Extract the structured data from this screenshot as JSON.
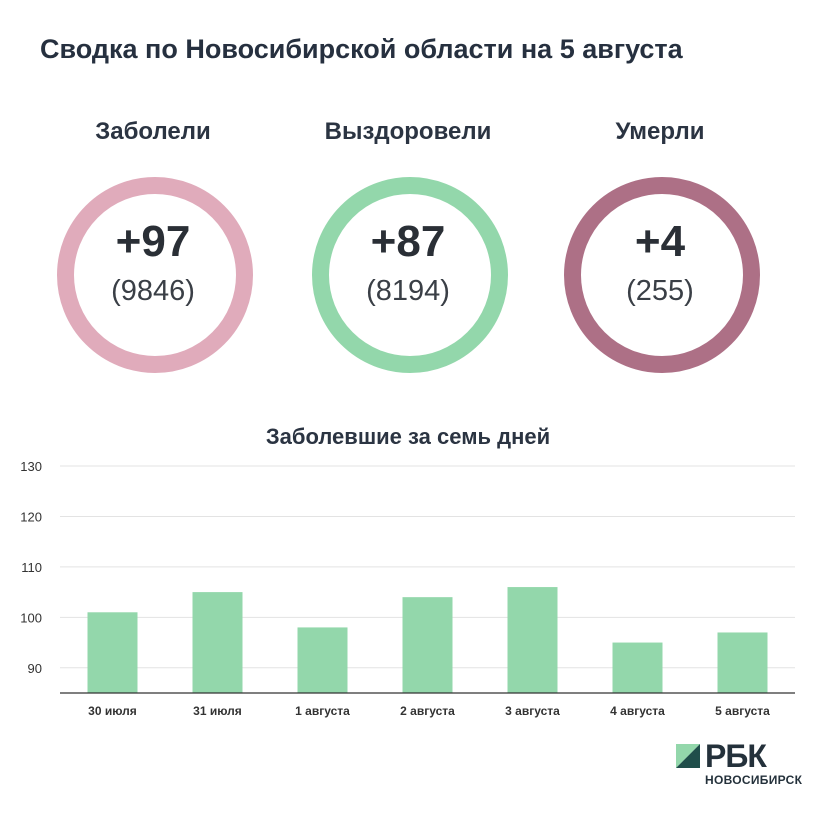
{
  "title": "Сводка по Новосибирской области на 5 августа",
  "stats": [
    {
      "label": "Заболели",
      "delta": "+97",
      "total": "(9846)",
      "color": "#e0abbb"
    },
    {
      "label": "Выздоровели",
      "delta": "+87",
      "total": "(8194)",
      "color": "#93d7ab"
    },
    {
      "label": "Умерли",
      "delta": "+4",
      "total": "(255)",
      "color": "#ad7086"
    }
  ],
  "chart_data": {
    "type": "bar",
    "title": "Заболевшие за семь дней",
    "categories": [
      "30 июля",
      "31 июля",
      "1 августа",
      "2 августа",
      "3 августа",
      "4 августа",
      "5 августа"
    ],
    "values": [
      101,
      105,
      98,
      104,
      106,
      95,
      97
    ],
    "ylim": [
      85,
      130
    ],
    "yticks": [
      90,
      100,
      110,
      120,
      130
    ],
    "grid": true,
    "bar_color": "#93d7ab"
  },
  "logo": {
    "text": "РБК",
    "sub": "НОВОСИБИРСК",
    "mark_light": "#93d7ab",
    "mark_dark": "#1f4e4a"
  }
}
